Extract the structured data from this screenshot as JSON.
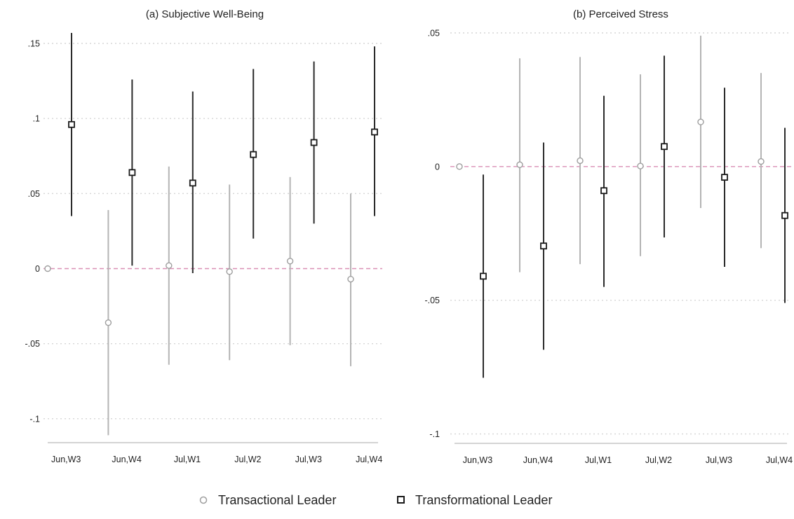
{
  "chart_data": [
    {
      "type": "scatter",
      "title": "(a) Subjective Well-Being",
      "categories": [
        "Jun,W3",
        "Jun,W4",
        "Jul,W1",
        "Jul,W2",
        "Jul,W3",
        "Jul,W4"
      ],
      "ylim": [
        -0.115,
        0.157
      ],
      "yticks": [
        {
          "value": 0.15,
          "label": ".15"
        },
        {
          "value": 0.1,
          "label": ".1"
        },
        {
          "value": 0.05,
          "label": ".05"
        },
        {
          "value": 0,
          "label": "0"
        },
        {
          "value": -0.05,
          "label": "-.05"
        },
        {
          "value": -0.1,
          "label": "-.1"
        }
      ],
      "grid": true,
      "reference_line": 0,
      "series": [
        {
          "name": "Transactional Leader",
          "values": [
            0,
            -0.036,
            0.002,
            -0.002,
            0.005,
            -0.007
          ],
          "ci_low": [
            null,
            -0.111,
            -0.064,
            -0.061,
            -0.051,
            -0.065
          ],
          "ci_high": [
            null,
            0.039,
            0.068,
            0.056,
            0.061,
            0.05
          ]
        },
        {
          "name": "Transformational Leader",
          "values": [
            0.096,
            0.064,
            0.057,
            0.076,
            0.084,
            0.091
          ],
          "ci_low": [
            0.035,
            0.002,
            -0.003,
            0.02,
            0.03,
            0.035
          ],
          "ci_high": [
            0.157,
            0.126,
            0.118,
            0.133,
            0.138,
            0.148
          ]
        }
      ]
    },
    {
      "type": "scatter",
      "title": "(b) Perceived Stress",
      "categories": [
        "Jun,W3",
        "Jun,W4",
        "Jul,W1",
        "Jul,W2",
        "Jul,W3",
        "Jul,W4"
      ],
      "ylim": [
        -0.103,
        0.05
      ],
      "yticks": [
        {
          "value": 0.05,
          "label": ".05"
        },
        {
          "value": 0,
          "label": "0"
        },
        {
          "value": -0.05,
          "label": "-.05"
        },
        {
          "value": -0.1,
          "label": "-.1"
        }
      ],
      "grid": true,
      "reference_line": 0,
      "series": [
        {
          "name": "Transactional Leader",
          "values": [
            0,
            0.0007,
            0.0022,
            0.0002,
            0.0167,
            0.0019
          ],
          "ci_low": [
            null,
            -0.0395,
            -0.0365,
            -0.0335,
            -0.0155,
            -0.0305
          ],
          "ci_high": [
            null,
            0.0405,
            0.041,
            0.0345,
            0.049,
            0.035
          ]
        },
        {
          "name": "Transformational Leader",
          "values": [
            -0.041,
            -0.0297,
            -0.009,
            0.0075,
            -0.004,
            -0.0183
          ],
          "ci_low": [
            -0.079,
            -0.0685,
            -0.045,
            -0.0265,
            -0.0375,
            -0.051
          ],
          "ci_high": [
            -0.003,
            0.009,
            0.0265,
            0.0415,
            0.0295,
            0.0145
          ]
        }
      ]
    }
  ],
  "legend": {
    "placement": "bottom-center",
    "items": [
      {
        "label": "Transactional Leader",
        "marker": "hollow-circle",
        "color": "#aaaaaa"
      },
      {
        "label": "Transformational Leader",
        "marker": "hollow-square",
        "color": "#222222"
      }
    ]
  },
  "colors": {
    "transactional": "#b4b4b4",
    "transformational": "#2b2b2b",
    "reference_line": "#d98fb5",
    "grid": "#d6d6d6",
    "axis": "#bbbbbb"
  }
}
